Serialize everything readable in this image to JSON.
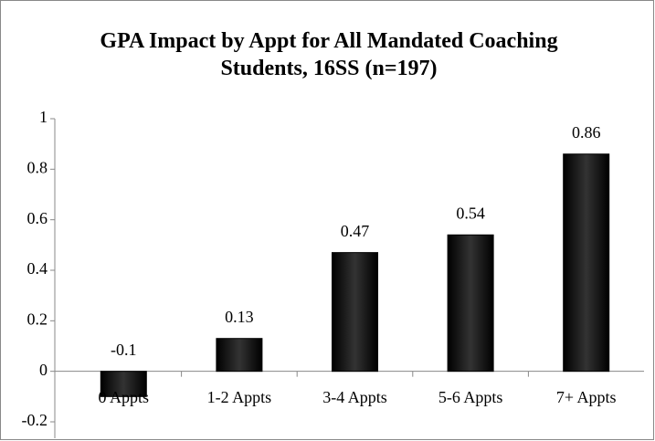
{
  "chart_data": {
    "type": "bar",
    "title": "GPA Impact by Appt for All Mandated Coaching Students, 16SS (n=197)",
    "categories": [
      "0 Appts",
      "1-2 Appts",
      "3-4 Appts",
      "5-6 Appts",
      "7+ Appts"
    ],
    "values": [
      -0.1,
      0.13,
      0.47,
      0.54,
      0.86
    ],
    "color": "#000000",
    "ylim": [
      -0.2,
      1
    ],
    "yticks": [
      -0.2,
      0,
      0.2,
      0.4,
      0.6,
      0.8,
      1
    ],
    "grid": false
  }
}
